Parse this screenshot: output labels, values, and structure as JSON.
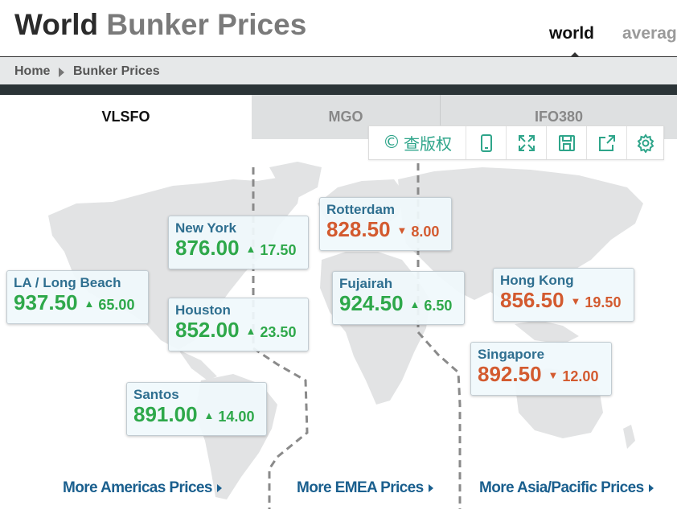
{
  "header": {
    "title_bold": "World",
    "title_rest": "Bunker Prices",
    "view_tabs": [
      "world",
      "averag"
    ]
  },
  "breadcrumb": [
    "Home",
    "Bunker Prices"
  ],
  "fuel_tabs": [
    "VLSFO",
    "MGO",
    "IFO380"
  ],
  "toolbar": {
    "copyright_label": "查版权",
    "icons": [
      "copyright-icon",
      "tablet-icon",
      "fullscreen-icon",
      "save-icon",
      "share-icon",
      "settings-icon"
    ]
  },
  "ports": [
    {
      "name": "New York",
      "price": "876.00",
      "change": "17.50",
      "direction": "up"
    },
    {
      "name": "Rotterdam",
      "price": "828.50",
      "change": "8.00",
      "direction": "down"
    },
    {
      "name": "LA / Long Beach",
      "price": "937.50",
      "change": "65.00",
      "direction": "up"
    },
    {
      "name": "Fujairah",
      "price": "924.50",
      "change": "6.50",
      "direction": "up"
    },
    {
      "name": "Hong Kong",
      "price": "856.50",
      "change": "19.50",
      "direction": "down"
    },
    {
      "name": "Houston",
      "price": "852.00",
      "change": "23.50",
      "direction": "up"
    },
    {
      "name": "Singapore",
      "price": "892.50",
      "change": "12.00",
      "direction": "down"
    },
    {
      "name": "Santos",
      "price": "891.00",
      "change": "14.00",
      "direction": "up"
    }
  ],
  "links": {
    "americas": "More Americas Prices",
    "emea": "More EMEA Prices",
    "asia": "More Asia/Pacific Prices"
  },
  "colors": {
    "up": "#2ea84a",
    "down": "#d35a2f",
    "port_label": "#2f6f90",
    "link": "#1a5f8e",
    "toolbar": "#2ea58a"
  }
}
